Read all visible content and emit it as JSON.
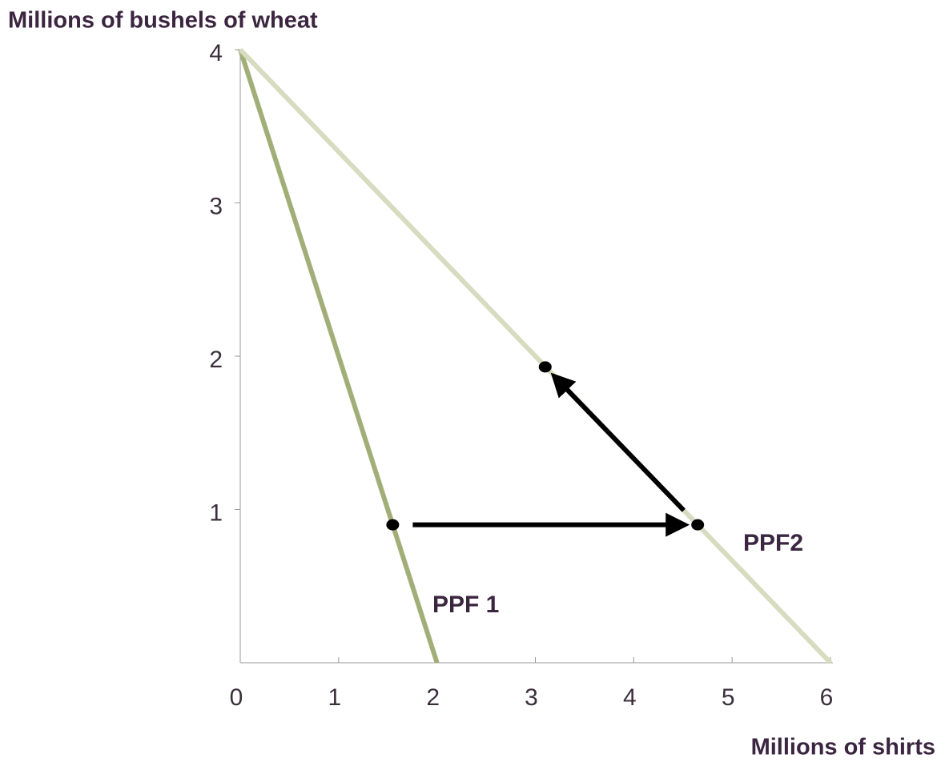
{
  "chart_data": {
    "type": "line",
    "x_label": "Millions of shirts",
    "y_label": "Millions of bushels of wheat",
    "xlim": [
      0,
      6
    ],
    "ylim": [
      0,
      4
    ],
    "xticks": [
      0,
      1,
      2,
      3,
      4,
      5,
      6
    ],
    "yticks": [
      1,
      2,
      3,
      4
    ],
    "series": [
      {
        "name": "PPF 1",
        "color": "#a2ae78",
        "x": [
          0,
          2
        ],
        "values": [
          4,
          0
        ]
      },
      {
        "name": "PPF2",
        "color": "#d7dcc0",
        "x": [
          0,
          6
        ],
        "values": [
          4,
          0
        ]
      }
    ],
    "points": {
      "color": "#000000",
      "x": [
        1.55,
        4.65,
        3.1
      ],
      "values": [
        0.9,
        0.9,
        1.93
      ]
    }
  }
}
